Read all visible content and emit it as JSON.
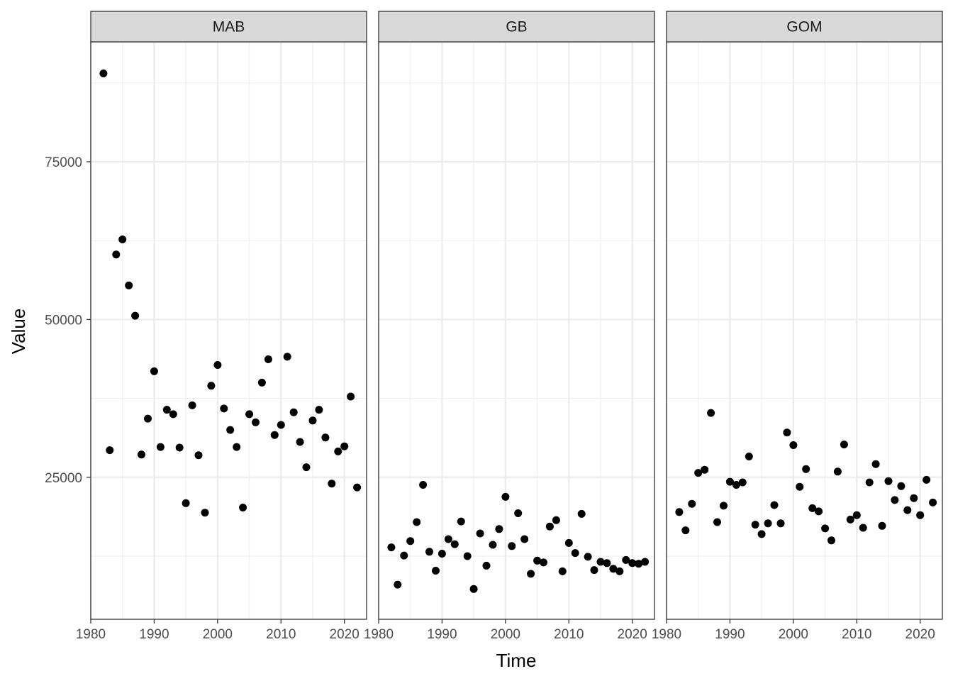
{
  "chart_data": {
    "type": "scatter",
    "xlabel": "Time",
    "ylabel": "Value",
    "xlim": [
      1980,
      2023.5
    ],
    "ylim": [
      2500,
      94000
    ],
    "x_ticks": [
      1980,
      1990,
      2000,
      2010,
      2020
    ],
    "x_tick_labels": [
      "1980",
      "1990",
      "2000",
      "2010",
      "2020"
    ],
    "y_ticks": [
      25000,
      50000,
      75000
    ],
    "y_tick_labels": [
      "25000",
      "50000",
      "75000"
    ],
    "grid": true,
    "point_color": "#000000",
    "panels": [
      {
        "name": "MAB",
        "x": [
          1982,
          1983,
          1984,
          1985,
          1986,
          1987,
          1988,
          1989,
          1990,
          1991,
          1992,
          1993,
          1994,
          1995,
          1996,
          1997,
          1998,
          1999,
          2000,
          2001,
          2002,
          2003,
          2004,
          2005,
          2006,
          2007,
          2008,
          2009,
          2010,
          2011,
          2012,
          2013,
          2014,
          2015,
          2016,
          2017,
          2018,
          2019,
          2020,
          2021,
          2022
        ],
        "y": [
          89000,
          29300,
          60300,
          62700,
          55400,
          50600,
          28600,
          34300,
          41800,
          29800,
          35700,
          35000,
          29700,
          20900,
          36400,
          28500,
          19400,
          39500,
          42800,
          35900,
          32500,
          29800,
          20200,
          35000,
          33700,
          40000,
          43700,
          31700,
          33300,
          44100,
          35300,
          30600,
          26600,
          34000,
          35700,
          31300,
          24000,
          29100,
          29900,
          37800,
          23400
        ]
      },
      {
        "name": "GB",
        "x": [
          1982,
          1983,
          1984,
          1985,
          1986,
          1987,
          1988,
          1989,
          1990,
          1991,
          1992,
          1993,
          1994,
          1995,
          1996,
          1997,
          1998,
          1999,
          2000,
          2001,
          2002,
          2003,
          2004,
          2005,
          2006,
          2007,
          2008,
          2009,
          2010,
          2011,
          2012,
          2013,
          2014,
          2015,
          2016,
          2017,
          2018,
          2019,
          2020,
          2021,
          2022
        ],
        "y": [
          13900,
          8000,
          12600,
          14900,
          17900,
          23800,
          13200,
          10200,
          12900,
          15200,
          14400,
          18000,
          12500,
          7300,
          16100,
          11000,
          14300,
          16800,
          21900,
          14100,
          19300,
          15200,
          9700,
          11800,
          11500,
          17200,
          18200,
          10100,
          14600,
          13000,
          19200,
          12400,
          10300,
          11600,
          11400,
          10500,
          10100,
          11900,
          11400,
          11300,
          11600
        ]
      },
      {
        "name": "GOM",
        "x": [
          1982,
          1983,
          1984,
          1985,
          1986,
          1987,
          1988,
          1989,
          1990,
          1991,
          1992,
          1993,
          1994,
          1995,
          1996,
          1997,
          1998,
          1999,
          2000,
          2001,
          2002,
          2003,
          2004,
          2005,
          2006,
          2007,
          2008,
          2009,
          2010,
          2011,
          2012,
          2013,
          2014,
          2015,
          2016,
          2017,
          2018,
          2019,
          2020,
          2021,
          2022
        ],
        "y": [
          19500,
          16600,
          20800,
          25700,
          26200,
          35200,
          17900,
          20500,
          24300,
          23800,
          24200,
          28300,
          17500,
          16000,
          17700,
          20600,
          17700,
          32100,
          30100,
          23500,
          26300,
          20100,
          19600,
          16900,
          15000,
          25900,
          30200,
          18300,
          19000,
          17000,
          24200,
          27100,
          17300,
          24400,
          21400,
          23600,
          19800,
          21700,
          19000,
          24600,
          21000
        ]
      }
    ]
  }
}
